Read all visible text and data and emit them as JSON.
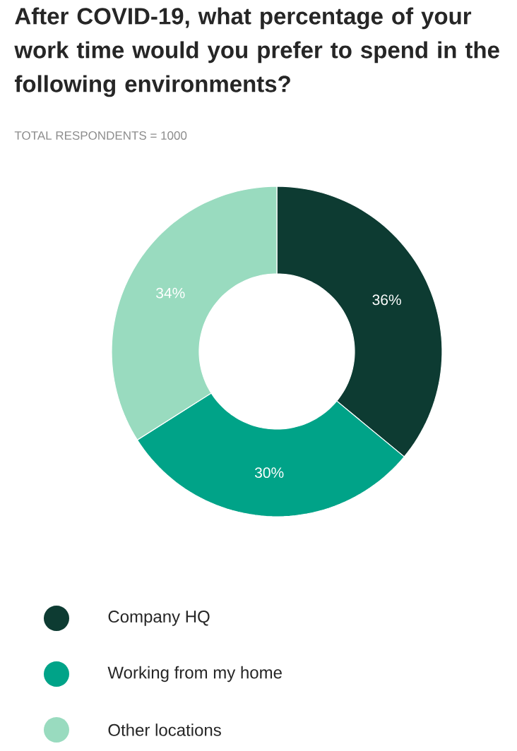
{
  "chart_data": {
    "type": "donut",
    "title": "After COVID-19, what percentage of your work time would you prefer to spend in the following environments?",
    "subtitle": "TOTAL RESPONDENTS = 1000",
    "categories": [
      "Company HQ",
      "Working from my home",
      "Other locations"
    ],
    "values": [
      36,
      30,
      34
    ],
    "colors": [
      "#0d3b32",
      "#00a388",
      "#99dbbf"
    ],
    "value_labels": [
      "36%",
      "30%",
      "34%"
    ],
    "legend": "bottom"
  }
}
